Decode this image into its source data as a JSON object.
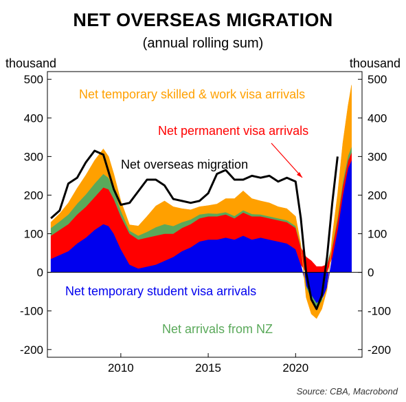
{
  "title": "NET OVERSEAS MIGRATION",
  "subtitle": "(annual rolling sum)",
  "y_unit_left": "thousand",
  "y_unit_right": "thousand",
  "source": "Source: CBA, Macrobond",
  "colors": {
    "student": "#0000ee",
    "permanent": "#ff0000",
    "nz": "#5aa95a",
    "skilled": "#ffa000",
    "total": "#000000"
  },
  "chart_data": {
    "type": "area",
    "xlim": [
      2005.8,
      2023.8
    ],
    "ylim": [
      -220,
      520
    ],
    "x_ticks": [
      {
        "value": 2010,
        "label": "2010"
      },
      {
        "value": 2015,
        "label": "2015"
      },
      {
        "value": 2020,
        "label": "2020"
      }
    ],
    "y_ticks": [
      {
        "value": -200,
        "label": "-200"
      },
      {
        "value": -100,
        "label": "-100"
      },
      {
        "value": 0,
        "label": "0"
      },
      {
        "value": 100,
        "label": "100"
      },
      {
        "value": 200,
        "label": "200"
      },
      {
        "value": 300,
        "label": "300"
      },
      {
        "value": 400,
        "label": "400"
      },
      {
        "value": 500,
        "label": "500"
      }
    ],
    "annotations": [
      {
        "text": "Net temporary skilled & work visa arrivals",
        "color": "#ffa000"
      },
      {
        "text": "Net permanent visa arrivals",
        "color": "#ff0000"
      },
      {
        "text": "Net overseas migration",
        "color": "#000000"
      },
      {
        "text": "Net temporary student visa arrivals",
        "color": "#0000ee"
      },
      {
        "text": "Net arrivals from NZ",
        "color": "#5aa95a"
      }
    ],
    "x": [
      2006.0,
      2006.5,
      2007.0,
      2007.5,
      2008.0,
      2008.5,
      2009.0,
      2009.3,
      2009.6,
      2010.0,
      2010.5,
      2011.0,
      2011.5,
      2012.0,
      2012.5,
      2013.0,
      2013.5,
      2014.0,
      2014.5,
      2015.0,
      2015.5,
      2016.0,
      2016.5,
      2017.0,
      2017.5,
      2018.0,
      2018.5,
      2019.0,
      2019.5,
      2020.0,
      2020.3,
      2020.6,
      2020.9,
      2021.2,
      2021.5,
      2021.8,
      2022.1,
      2022.4,
      2022.7,
      2023.0,
      2023.2
    ],
    "series": [
      {
        "name": "Net temporary student visa arrivals",
        "values": [
          35,
          45,
          55,
          75,
          90,
          110,
          125,
          120,
          100,
          60,
          20,
          10,
          15,
          20,
          30,
          40,
          55,
          65,
          80,
          85,
          85,
          90,
          85,
          95,
          85,
          90,
          85,
          80,
          75,
          60,
          20,
          -35,
          -60,
          -80,
          -70,
          -40,
          40,
          110,
          200,
          270,
          290
        ]
      },
      {
        "name": "Net permanent visa arrivals",
        "values": [
          60,
          65,
          70,
          75,
          80,
          85,
          95,
          95,
          90,
          85,
          80,
          75,
          75,
          75,
          70,
          60,
          60,
          60,
          60,
          60,
          60,
          60,
          55,
          60,
          60,
          55,
          55,
          55,
          55,
          55,
          45,
          40,
          30,
          15,
          15,
          20,
          25,
          25,
          25,
          20,
          20
        ]
      },
      {
        "name": "Net arrivals from NZ",
        "values": [
          20,
          22,
          25,
          28,
          32,
          35,
          35,
          30,
          25,
          15,
          8,
          10,
          15,
          22,
          25,
          20,
          15,
          12,
          10,
          8,
          7,
          6,
          6,
          6,
          6,
          5,
          5,
          5,
          5,
          5,
          3,
          -5,
          -8,
          -10,
          -5,
          2,
          5,
          8,
          10,
          12,
          15
        ]
      },
      {
        "name": "Net temporary skilled & work visa arrivals",
        "values": [
          15,
          20,
          30,
          40,
          50,
          60,
          65,
          55,
          40,
          25,
          15,
          25,
          40,
          55,
          60,
          50,
          35,
          25,
          20,
          20,
          25,
          35,
          45,
          50,
          40,
          35,
          35,
          30,
          30,
          25,
          5,
          -25,
          -40,
          -30,
          -20,
          -5,
          25,
          60,
          100,
          130,
          160
        ]
      },
      {
        "name": "Net overseas migration",
        "values": [
          140,
          160,
          230,
          245,
          285,
          315,
          305,
          260,
          215,
          175,
          180,
          210,
          240,
          240,
          225,
          190,
          185,
          180,
          185,
          205,
          255,
          265,
          240,
          240,
          250,
          245,
          250,
          235,
          245,
          235,
          140,
          0,
          -70,
          -95,
          -60,
          40,
          180,
          300,
          null,
          null,
          null
        ]
      }
    ]
  }
}
